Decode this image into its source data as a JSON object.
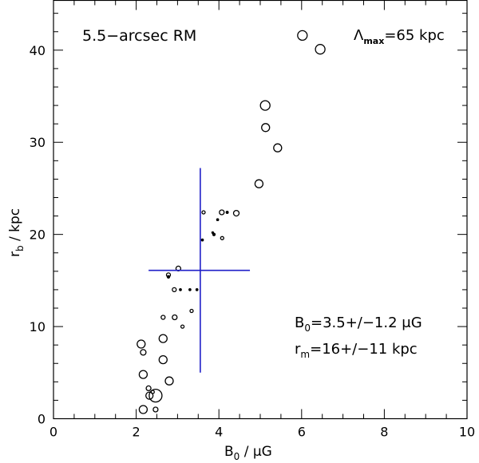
{
  "chart_data": {
    "type": "scatter",
    "title": "",
    "annotations": {
      "dataset": "5.5−arcsec RM",
      "lambda": {
        "symbol": "Λ",
        "sub": "max",
        "value": "=65 kpc"
      },
      "b0_result": {
        "symbol": "B",
        "sub": "0",
        "value": "=3.5+/−1.2 μG"
      },
      "rm_result": {
        "symbol": "r",
        "sub": "m",
        "value": "=16+/−11 kpc"
      }
    },
    "xlabel": {
      "symbol": "B",
      "sub": "0",
      "rest": " / μG"
    },
    "ylabel": {
      "symbol": "r",
      "sub": "b",
      "rest": " / kpc"
    },
    "xlim": [
      0,
      10
    ],
    "ylim": [
      0,
      45.4
    ],
    "xticks": [
      0,
      2,
      4,
      6,
      8,
      10
    ],
    "yticks": [
      0,
      10,
      20,
      30,
      40
    ],
    "x_minor_step": 0.5,
    "y_minor_step": 2,
    "grid": false,
    "legend": "none",
    "marker_color": "#000000",
    "crosshair_color": "#1f1fc8",
    "crosshair": {
      "center": [
        3.55,
        16.1
      ],
      "x_range": [
        2.3,
        4.75
      ],
      "y_range": [
        5.0,
        27.2
      ]
    },
    "points": [
      {
        "x": 6.02,
        "y": 41.6,
        "s": 6
      },
      {
        "x": 6.45,
        "y": 40.1,
        "s": 6
      },
      {
        "x": 5.12,
        "y": 34.0,
        "s": 6
      },
      {
        "x": 5.13,
        "y": 31.6,
        "s": 5
      },
      {
        "x": 5.42,
        "y": 29.4,
        "s": 5
      },
      {
        "x": 4.97,
        "y": 25.5,
        "s": 5
      },
      {
        "x": 3.63,
        "y": 22.4,
        "s": 2
      },
      {
        "x": 4.07,
        "y": 22.4,
        "s": 3
      },
      {
        "x": 4.2,
        "y": 22.4,
        "s": 1.3
      },
      {
        "x": 4.42,
        "y": 22.3,
        "s": 3.5
      },
      {
        "x": 3.97,
        "y": 21.6,
        "s": 1.2
      },
      {
        "x": 3.85,
        "y": 20.2,
        "s": 1
      },
      {
        "x": 3.88,
        "y": 20.0,
        "s": 1.5
      },
      {
        "x": 4.08,
        "y": 19.6,
        "s": 2
      },
      {
        "x": 3.6,
        "y": 19.4,
        "s": 1.2
      },
      {
        "x": 3.02,
        "y": 16.3,
        "s": 3
      },
      {
        "x": 2.78,
        "y": 15.6,
        "s": 2.5
      },
      {
        "x": 2.78,
        "y": 15.4,
        "s": 1.5
      },
      {
        "x": 2.92,
        "y": 14.0,
        "s": 2.5
      },
      {
        "x": 3.07,
        "y": 14.0,
        "s": 1.2
      },
      {
        "x": 3.3,
        "y": 14.0,
        "s": 1.2
      },
      {
        "x": 3.47,
        "y": 14.0,
        "s": 1.2
      },
      {
        "x": 3.34,
        "y": 11.7,
        "s": 2
      },
      {
        "x": 2.65,
        "y": 11.0,
        "s": 2.5
      },
      {
        "x": 2.93,
        "y": 11.0,
        "s": 3
      },
      {
        "x": 3.12,
        "y": 10.0,
        "s": 2
      },
      {
        "x": 2.65,
        "y": 8.7,
        "s": 5
      },
      {
        "x": 2.12,
        "y": 8.1,
        "s": 5
      },
      {
        "x": 2.17,
        "y": 7.2,
        "s": 3.5
      },
      {
        "x": 2.65,
        "y": 6.4,
        "s": 5
      },
      {
        "x": 2.17,
        "y": 4.8,
        "s": 5
      },
      {
        "x": 2.8,
        "y": 4.1,
        "s": 5
      },
      {
        "x": 2.3,
        "y": 3.3,
        "s": 3
      },
      {
        "x": 2.4,
        "y": 2.9,
        "s": 2
      },
      {
        "x": 2.32,
        "y": 2.5,
        "s": 4.5
      },
      {
        "x": 2.47,
        "y": 2.5,
        "s": 8
      },
      {
        "x": 2.17,
        "y": 1.0,
        "s": 5
      },
      {
        "x": 2.47,
        "y": 1.0,
        "s": 3
      }
    ]
  }
}
